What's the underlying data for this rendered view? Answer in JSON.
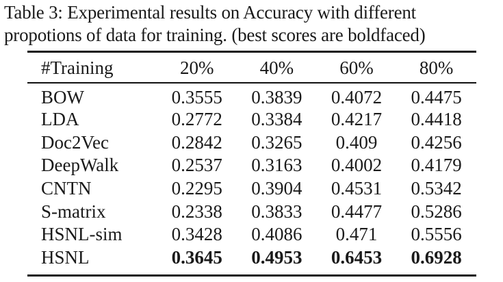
{
  "caption": {
    "line1": "Table 3:  Experimental results on Accuracy with different",
    "line2": "propotions of data for training. (best scores are boldfaced)"
  },
  "table": {
    "headers": [
      "#Training",
      "20%",
      "40%",
      "60%",
      "80%"
    ],
    "rows": [
      {
        "method": "BOW",
        "values": [
          "0.3555",
          "0.3839",
          "0.4072",
          "0.4475"
        ]
      },
      {
        "method": "LDA",
        "values": [
          "0.2772",
          "0.3384",
          "0.4217",
          "0.4418"
        ]
      },
      {
        "method": "Doc2Vec",
        "values": [
          "0.2842",
          "0.3265",
          "0.409",
          "0.4256"
        ]
      },
      {
        "method": "DeepWalk",
        "values": [
          "0.2537",
          "0.3163",
          "0.4002",
          "0.4179"
        ]
      },
      {
        "method": "CNTN",
        "values": [
          "0.2295",
          "0.3904",
          "0.4531",
          "0.5342"
        ]
      },
      {
        "method": "S-matrix",
        "values": [
          "0.2338",
          "0.3833",
          "0.4477",
          "0.5286"
        ]
      },
      {
        "method": "HSNL-sim",
        "values": [
          "0.3428",
          "0.4086",
          "0.471",
          "0.5556"
        ]
      },
      {
        "method": "HSNL",
        "values": [
          "0.3645",
          "0.4953",
          "0.6453",
          "0.6928"
        ],
        "bold": true
      }
    ]
  }
}
